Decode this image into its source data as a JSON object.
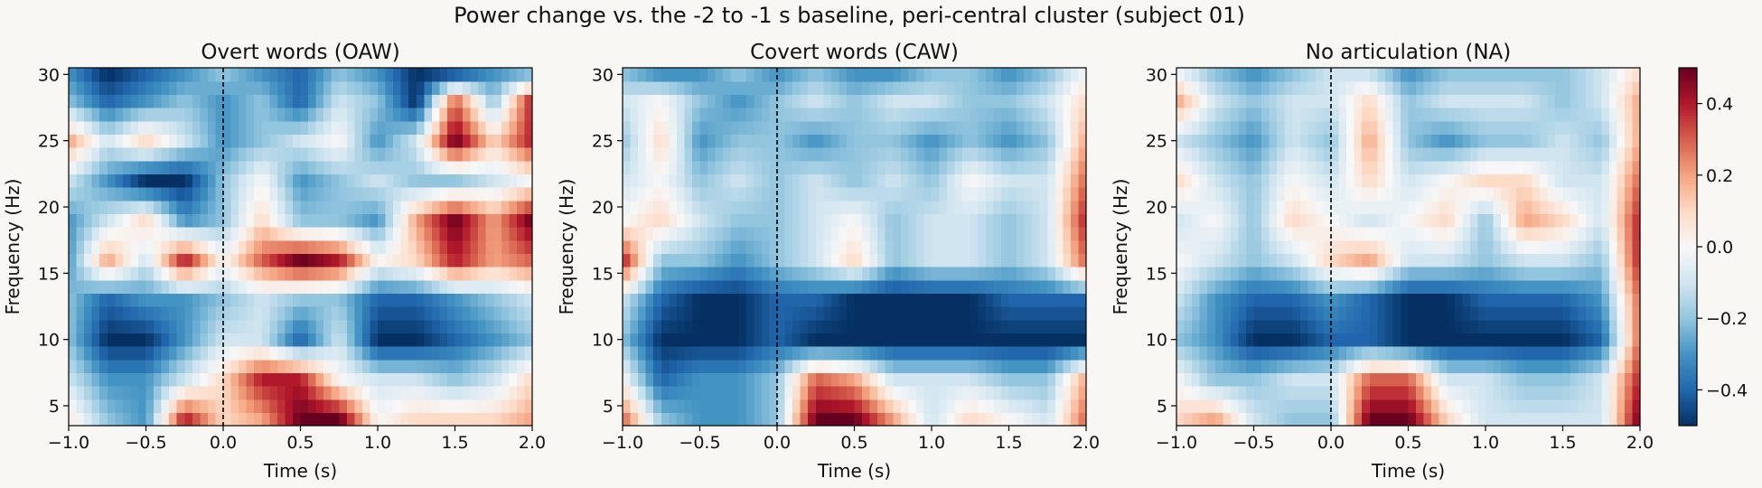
{
  "figure": {
    "suptitle": "Power change vs. the -2 to -1 s baseline, peri-central cluster (subject 01)"
  },
  "colorbar": {
    "ticks": [
      "0.4",
      "0.2",
      "0.0",
      "−0.2",
      "−0.4"
    ],
    "tick_values": [
      0.4,
      0.2,
      0.0,
      -0.2,
      -0.4
    ]
  },
  "chart_data": [
    {
      "type": "heatmap",
      "title": "Overt words (OAW)",
      "xlabel": "Time (s)",
      "ylabel": "Frequency (Hz)",
      "xlim": [
        -1.0,
        2.0
      ],
      "ylim": [
        3.5,
        30.5
      ],
      "xticks": [
        "−1.0",
        "−0.5",
        "0.0",
        "0.5",
        "1.0",
        "1.5",
        "2.0"
      ],
      "yticks": [
        "5",
        "10",
        "15",
        "20",
        "25",
        "30"
      ],
      "colormap": "RdBu_r",
      "vmin": -0.5,
      "vmax": 0.5,
      "event_line_x": 0.0,
      "time_bins": [
        -1.0,
        -0.75,
        -0.5,
        -0.25,
        0.0,
        0.25,
        0.5,
        0.75,
        1.0,
        1.25,
        1.5,
        1.75,
        2.0
      ],
      "freq_bins": [
        4,
        7,
        10,
        13,
        16,
        19,
        22,
        25,
        28,
        30
      ],
      "values": [
        [
          0.05,
          -0.2,
          -0.3,
          0.4,
          0.1,
          0.2,
          0.5,
          0.5,
          0.0,
          0.1,
          0.1,
          0.1,
          0.2
        ],
        [
          -0.1,
          -0.3,
          -0.3,
          -0.1,
          0.1,
          0.4,
          0.4,
          0.0,
          -0.1,
          -0.1,
          -0.2,
          -0.1,
          0.1
        ],
        [
          -0.2,
          -0.5,
          -0.5,
          -0.3,
          -0.1,
          -0.1,
          -0.4,
          -0.1,
          -0.5,
          -0.5,
          -0.4,
          -0.3,
          -0.2
        ],
        [
          -0.2,
          -0.4,
          -0.3,
          -0.3,
          -0.2,
          -0.1,
          -0.2,
          -0.2,
          -0.4,
          -0.4,
          -0.3,
          -0.2,
          -0.1
        ],
        [
          -0.3,
          0.2,
          -0.1,
          0.4,
          0.0,
          0.3,
          0.5,
          0.4,
          0.0,
          0.1,
          0.4,
          0.2,
          0.3
        ],
        [
          -0.3,
          -0.1,
          0.1,
          -0.3,
          -0.2,
          0.1,
          -0.2,
          -0.2,
          -0.3,
          0.2,
          0.5,
          0.2,
          0.5
        ],
        [
          -0.1,
          -0.3,
          -0.5,
          -0.5,
          -0.2,
          0.0,
          -0.3,
          -0.2,
          -0.1,
          -0.2,
          -0.2,
          -0.1,
          0.0
        ],
        [
          0.2,
          -0.1,
          0.1,
          -0.1,
          -0.3,
          -0.2,
          -0.1,
          0.0,
          -0.3,
          -0.1,
          0.5,
          0.1,
          0.4
        ],
        [
          -0.2,
          -0.4,
          -0.3,
          -0.2,
          -0.3,
          -0.2,
          -0.4,
          -0.1,
          -0.2,
          -0.5,
          0.3,
          -0.2,
          0.4
        ],
        [
          -0.3,
          -0.5,
          -0.4,
          -0.3,
          -0.2,
          -0.3,
          -0.4,
          -0.2,
          -0.3,
          -0.5,
          -0.4,
          -0.3,
          -0.2
        ]
      ]
    },
    {
      "type": "heatmap",
      "title": "Covert words (CAW)",
      "xlabel": "Time (s)",
      "ylabel": "Frequency (Hz)",
      "xlim": [
        -1.0,
        2.0
      ],
      "ylim": [
        3.5,
        30.5
      ],
      "xticks": [
        "−1.0",
        "−0.5",
        "0.0",
        "0.5",
        "1.0",
        "1.5",
        "2.0"
      ],
      "yticks": [
        "5",
        "10",
        "15",
        "20",
        "25",
        "30"
      ],
      "colormap": "RdBu_r",
      "vmin": -0.5,
      "vmax": 0.5,
      "event_line_x": 0.0,
      "time_bins": [
        -1.0,
        -0.75,
        -0.5,
        -0.25,
        0.0,
        0.25,
        0.5,
        0.75,
        1.0,
        1.25,
        1.5,
        1.75,
        2.0
      ],
      "freq_bins": [
        4,
        7,
        10,
        13,
        16,
        19,
        22,
        25,
        28,
        30
      ],
      "values": [
        [
          0.3,
          -0.2,
          -0.3,
          -0.3,
          -0.2,
          0.5,
          0.5,
          0.2,
          -0.1,
          0.1,
          0.0,
          -0.1,
          0.3
        ],
        [
          0.0,
          -0.4,
          -0.3,
          -0.3,
          -0.2,
          0.3,
          0.2,
          -0.1,
          -0.1,
          -0.1,
          -0.2,
          -0.2,
          0.2
        ],
        [
          -0.2,
          -0.5,
          -0.5,
          -0.5,
          -0.4,
          -0.5,
          -0.5,
          -0.5,
          -0.5,
          -0.5,
          -0.5,
          -0.5,
          -0.5
        ],
        [
          -0.1,
          -0.4,
          -0.5,
          -0.5,
          -0.4,
          -0.4,
          -0.5,
          -0.5,
          -0.5,
          -0.5,
          -0.4,
          -0.4,
          -0.4
        ],
        [
          0.4,
          -0.2,
          -0.2,
          -0.3,
          -0.2,
          -0.1,
          0.1,
          -0.2,
          -0.1,
          -0.1,
          -0.2,
          -0.1,
          0.3
        ],
        [
          0.0,
          0.1,
          -0.1,
          -0.2,
          -0.2,
          -0.1,
          0.0,
          -0.2,
          -0.1,
          -0.1,
          -0.2,
          -0.1,
          0.4
        ],
        [
          -0.1,
          0.0,
          -0.2,
          -0.1,
          -0.2,
          -0.1,
          -0.2,
          -0.1,
          -0.2,
          0.0,
          -0.1,
          -0.1,
          0.3
        ],
        [
          -0.2,
          0.1,
          -0.3,
          -0.2,
          -0.2,
          -0.3,
          -0.2,
          -0.2,
          -0.3,
          -0.2,
          -0.3,
          -0.2,
          0.2
        ],
        [
          -0.1,
          0.0,
          -0.2,
          -0.3,
          -0.2,
          -0.1,
          -0.2,
          -0.1,
          -0.1,
          -0.2,
          -0.2,
          -0.1,
          0.1
        ],
        [
          -0.2,
          -0.3,
          -0.3,
          -0.2,
          -0.3,
          -0.2,
          -0.3,
          -0.3,
          -0.2,
          -0.2,
          -0.3,
          -0.2,
          0.0
        ]
      ]
    },
    {
      "type": "heatmap",
      "title": "No articulation (NA)",
      "xlabel": "Time (s)",
      "ylabel": "Frequency (Hz)",
      "xlim": [
        -1.0,
        2.0
      ],
      "ylim": [
        3.5,
        30.5
      ],
      "xticks": [
        "−1.0",
        "−0.5",
        "0.0",
        "0.5",
        "1.0",
        "1.5",
        "2.0"
      ],
      "yticks": [
        "5",
        "10",
        "15",
        "20",
        "25",
        "30"
      ],
      "colormap": "RdBu_r",
      "vmin": -0.5,
      "vmax": 0.5,
      "event_line_x": 0.0,
      "time_bins": [
        -1.0,
        -0.75,
        -0.5,
        -0.25,
        0.0,
        0.25,
        0.5,
        0.75,
        1.0,
        1.25,
        1.5,
        1.75,
        2.0
      ],
      "freq_bins": [
        4,
        7,
        10,
        13,
        16,
        19,
        22,
        25,
        28,
        30
      ],
      "values": [
        [
          0.1,
          0.2,
          -0.1,
          -0.2,
          -0.2,
          0.5,
          0.5,
          0.1,
          -0.1,
          -0.1,
          -0.1,
          -0.1,
          0.5
        ],
        [
          0.0,
          -0.2,
          -0.2,
          -0.1,
          -0.1,
          0.3,
          0.3,
          -0.1,
          -0.1,
          -0.2,
          -0.2,
          -0.1,
          0.4
        ],
        [
          -0.2,
          -0.3,
          -0.5,
          -0.5,
          -0.4,
          -0.4,
          -0.5,
          -0.5,
          -0.5,
          -0.5,
          -0.5,
          -0.4,
          0.3
        ],
        [
          -0.1,
          -0.3,
          -0.4,
          -0.4,
          -0.3,
          -0.4,
          -0.5,
          -0.5,
          -0.4,
          -0.4,
          -0.4,
          -0.3,
          0.3
        ],
        [
          0.0,
          -0.1,
          -0.2,
          -0.1,
          0.1,
          0.2,
          -0.1,
          -0.1,
          -0.2,
          -0.1,
          -0.1,
          -0.2,
          0.4
        ],
        [
          -0.1,
          0.0,
          -0.2,
          0.1,
          0.0,
          -0.1,
          0.0,
          0.1,
          -0.2,
          0.2,
          0.1,
          -0.1,
          0.4
        ],
        [
          0.1,
          -0.1,
          -0.2,
          0.0,
          -0.1,
          0.1,
          -0.1,
          0.0,
          0.1,
          0.1,
          -0.1,
          -0.1,
          0.3
        ],
        [
          -0.1,
          -0.2,
          -0.3,
          -0.1,
          -0.2,
          0.2,
          -0.2,
          -0.3,
          -0.2,
          -0.2,
          -0.1,
          -0.2,
          0.2
        ],
        [
          0.2,
          -0.1,
          -0.2,
          -0.1,
          -0.1,
          0.1,
          -0.2,
          -0.1,
          -0.1,
          -0.1,
          -0.2,
          -0.1,
          0.2
        ],
        [
          0.0,
          -0.2,
          -0.3,
          -0.2,
          -0.1,
          -0.1,
          -0.3,
          -0.2,
          -0.2,
          -0.2,
          -0.2,
          -0.1,
          0.1
        ]
      ]
    }
  ]
}
